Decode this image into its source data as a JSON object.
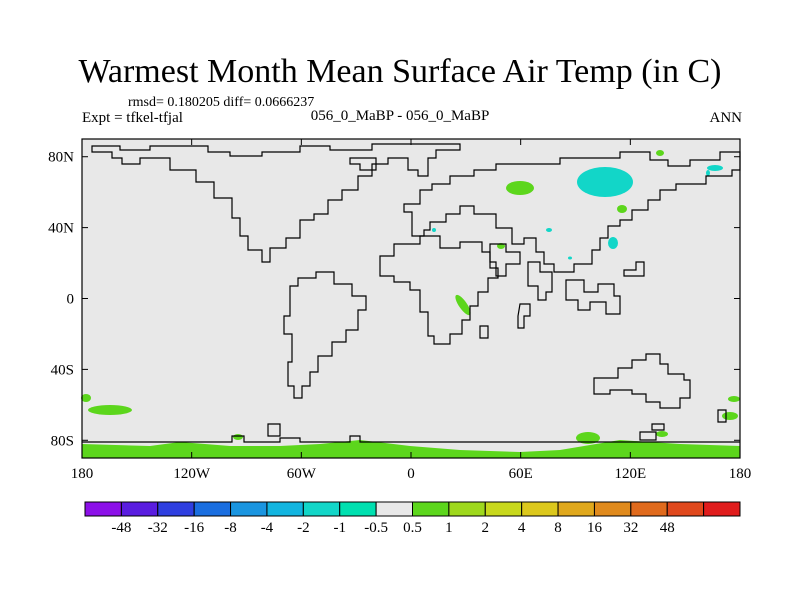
{
  "header": {
    "title": "Warmest Month Mean Surface Air Temp (in C)",
    "stats": "rmsd= 0.180205 diff= 0.0666237",
    "experiment": "Expt = tfkel-tfjal",
    "period": "056_0_MaBP - 056_0_MaBP",
    "season": "ANN"
  },
  "map": {
    "lon_range": [
      -180,
      180
    ],
    "lat_range": [
      -90,
      90
    ],
    "background_color": "#e8e8e8",
    "lat_ticks": [
      {
        "value": 80,
        "label": "80N"
      },
      {
        "value": 40,
        "label": "40N"
      },
      {
        "value": 0,
        "label": "0"
      },
      {
        "value": -40,
        "label": "40S"
      },
      {
        "value": -80,
        "label": "80S"
      }
    ],
    "lon_ticks": [
      {
        "value": -180,
        "label": "180"
      },
      {
        "value": -120,
        "label": "120W"
      },
      {
        "value": -60,
        "label": "60W"
      },
      {
        "value": 0,
        "label": "0"
      },
      {
        "value": 60,
        "label": "60E"
      },
      {
        "value": 120,
        "label": "120E"
      },
      {
        "value": 180,
        "label": "180"
      }
    ]
  },
  "colorbar": {
    "colors": [
      "#8c10e8",
      "#5a1de0",
      "#2f3fe0",
      "#1a6ee0",
      "#1a95e0",
      "#12b5e0",
      "#12d6c8",
      "#00e0b0",
      "#e8e8e8",
      "#5cd61c",
      "#9ed81c",
      "#c8d81c",
      "#dcc81c",
      "#e0a81c",
      "#e08a1c",
      "#e06a1c",
      "#e0481c",
      "#e01c1c"
    ],
    "labels": [
      "-48",
      "-32",
      "-16",
      "-8",
      "-4",
      "-2",
      "-1",
      "-0.5",
      "0.5",
      "1",
      "2",
      "4",
      "8",
      "16",
      "32",
      "48"
    ]
  }
}
